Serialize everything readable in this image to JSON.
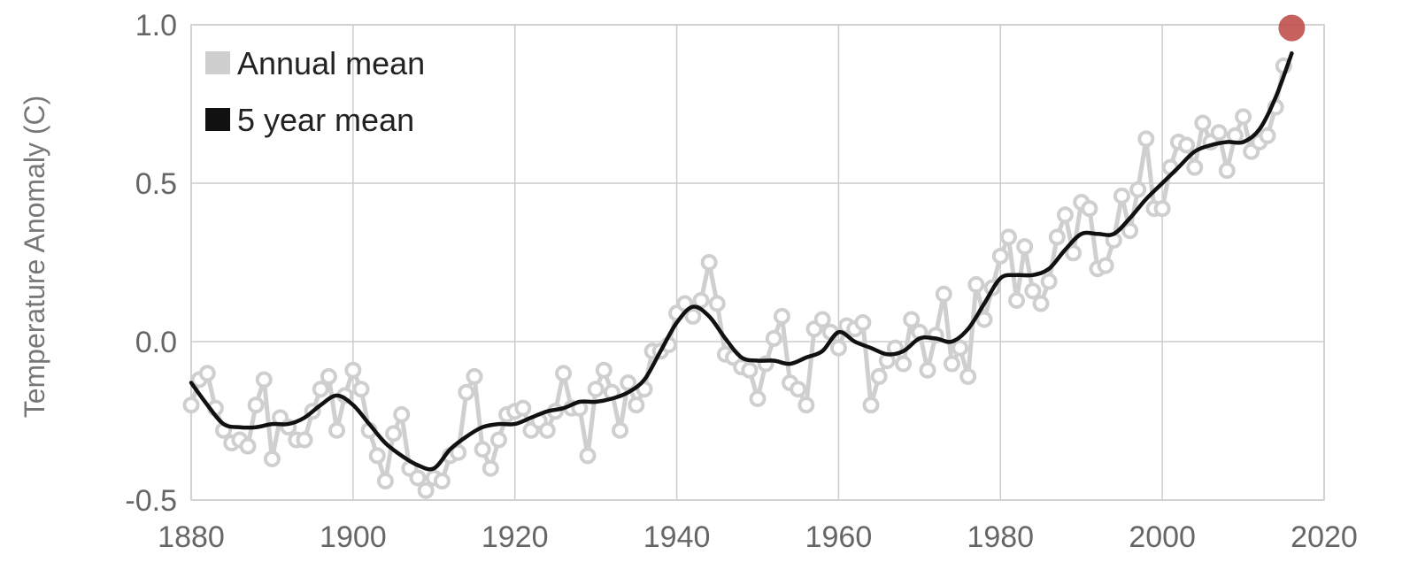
{
  "chart_data": {
    "type": "line",
    "title": "",
    "xlabel": "",
    "ylabel": "Temperature Anomaly (C)",
    "xlim": [
      1880,
      2020
    ],
    "ylim": [
      -0.5,
      1.0
    ],
    "x_ticks": [
      "1880",
      "1900",
      "1920",
      "1940",
      "1960",
      "1980",
      "2000",
      "2020"
    ],
    "y_ticks": [
      "-0.5",
      "0.0",
      "0.5",
      "1.0"
    ],
    "grid": true,
    "legend_position": "top-left",
    "colors": {
      "annual": "#cfcfcf",
      "five_year": "#111111",
      "highlight": "#c0504d"
    },
    "series": [
      {
        "name": "Annual mean",
        "x": [
          1880,
          1881,
          1882,
          1883,
          1884,
          1885,
          1886,
          1887,
          1888,
          1889,
          1890,
          1891,
          1892,
          1893,
          1894,
          1895,
          1896,
          1897,
          1898,
          1899,
          1900,
          1901,
          1902,
          1903,
          1904,
          1905,
          1906,
          1907,
          1908,
          1909,
          1910,
          1911,
          1912,
          1913,
          1914,
          1915,
          1916,
          1917,
          1918,
          1919,
          1920,
          1921,
          1922,
          1923,
          1924,
          1925,
          1926,
          1927,
          1928,
          1929,
          1930,
          1931,
          1932,
          1933,
          1934,
          1935,
          1936,
          1937,
          1938,
          1939,
          1940,
          1941,
          1942,
          1943,
          1944,
          1945,
          1946,
          1947,
          1948,
          1949,
          1950,
          1951,
          1952,
          1953,
          1954,
          1955,
          1956,
          1957,
          1958,
          1959,
          1960,
          1961,
          1962,
          1963,
          1964,
          1965,
          1966,
          1967,
          1968,
          1969,
          1970,
          1971,
          1972,
          1973,
          1974,
          1975,
          1976,
          1977,
          1978,
          1979,
          1980,
          1981,
          1982,
          1983,
          1984,
          1985,
          1986,
          1987,
          1988,
          1989,
          1990,
          1991,
          1992,
          1993,
          1994,
          1995,
          1996,
          1997,
          1998,
          1999,
          2000,
          2001,
          2002,
          2003,
          2004,
          2005,
          2006,
          2007,
          2008,
          2009,
          2010,
          2011,
          2012,
          2013,
          2014,
          2015
        ],
        "values": [
          -0.2,
          -0.12,
          -0.1,
          -0.21,
          -0.28,
          -0.32,
          -0.31,
          -0.33,
          -0.2,
          -0.12,
          -0.37,
          -0.24,
          -0.27,
          -0.31,
          -0.31,
          -0.22,
          -0.15,
          -0.11,
          -0.28,
          -0.17,
          -0.09,
          -0.15,
          -0.28,
          -0.36,
          -0.44,
          -0.29,
          -0.23,
          -0.4,
          -0.43,
          -0.47,
          -0.43,
          -0.44,
          -0.36,
          -0.35,
          -0.16,
          -0.11,
          -0.34,
          -0.4,
          -0.31,
          -0.23,
          -0.22,
          -0.21,
          -0.28,
          -0.25,
          -0.28,
          -0.22,
          -0.1,
          -0.21,
          -0.21,
          -0.36,
          -0.15,
          -0.09,
          -0.16,
          -0.28,
          -0.13,
          -0.2,
          -0.15,
          -0.03,
          -0.03,
          -0.01,
          0.09,
          0.12,
          0.08,
          0.13,
          0.25,
          0.12,
          -0.04,
          -0.05,
          -0.08,
          -0.09,
          -0.18,
          -0.07,
          0.01,
          0.08,
          -0.13,
          -0.15,
          -0.2,
          0.04,
          0.07,
          0.03,
          -0.02,
          0.05,
          0.04,
          0.06,
          -0.2,
          -0.11,
          -0.06,
          -0.02,
          -0.07,
          0.07,
          0.03,
          -0.09,
          0.02,
          0.15,
          -0.07,
          -0.02,
          -0.11,
          0.18,
          0.07,
          0.17,
          0.27,
          0.33,
          0.13,
          0.3,
          0.16,
          0.12,
          0.19,
          0.33,
          0.4,
          0.28,
          0.44,
          0.42,
          0.23,
          0.24,
          0.32,
          0.46,
          0.35,
          0.48,
          0.64,
          0.42,
          0.42,
          0.55,
          0.63,
          0.62,
          0.55,
          0.69,
          0.63,
          0.66,
          0.54,
          0.65,
          0.71,
          0.6,
          0.63,
          0.65,
          0.74,
          0.87
        ]
      },
      {
        "name": "5 year mean",
        "x": [
          1880,
          1882,
          1884,
          1886,
          1888,
          1890,
          1892,
          1894,
          1896,
          1898,
          1900,
          1902,
          1904,
          1906,
          1908,
          1910,
          1912,
          1914,
          1916,
          1918,
          1920,
          1922,
          1924,
          1926,
          1928,
          1930,
          1932,
          1934,
          1936,
          1938,
          1940,
          1942,
          1944,
          1946,
          1948,
          1950,
          1952,
          1954,
          1956,
          1958,
          1960,
          1962,
          1964,
          1966,
          1968,
          1970,
          1972,
          1974,
          1976,
          1978,
          1980,
          1982,
          1984,
          1986,
          1988,
          1990,
          1992,
          1994,
          1996,
          1998,
          2000,
          2002,
          2004,
          2006,
          2008,
          2010,
          2012,
          2014,
          2016
        ],
        "values": [
          -0.13,
          -0.2,
          -0.26,
          -0.27,
          -0.27,
          -0.26,
          -0.26,
          -0.24,
          -0.2,
          -0.17,
          -0.2,
          -0.26,
          -0.32,
          -0.36,
          -0.39,
          -0.4,
          -0.34,
          -0.3,
          -0.27,
          -0.26,
          -0.26,
          -0.24,
          -0.22,
          -0.21,
          -0.19,
          -0.19,
          -0.18,
          -0.16,
          -0.12,
          -0.03,
          0.06,
          0.11,
          0.08,
          0.01,
          -0.05,
          -0.06,
          -0.06,
          -0.07,
          -0.05,
          -0.03,
          0.03,
          0.0,
          -0.02,
          -0.04,
          -0.03,
          0.01,
          0.01,
          0.0,
          0.04,
          0.12,
          0.2,
          0.21,
          0.21,
          0.23,
          0.29,
          0.34,
          0.34,
          0.34,
          0.39,
          0.45,
          0.5,
          0.55,
          0.6,
          0.62,
          0.63,
          0.63,
          0.67,
          0.77,
          0.91
        ]
      }
    ],
    "highlight_point": {
      "x": 2016,
      "y": 0.99
    }
  },
  "legend": [
    {
      "label": "Annual mean",
      "swatch_color": "#cfcfcf"
    },
    {
      "label": "5 year mean",
      "swatch_color": "#111111"
    }
  ]
}
